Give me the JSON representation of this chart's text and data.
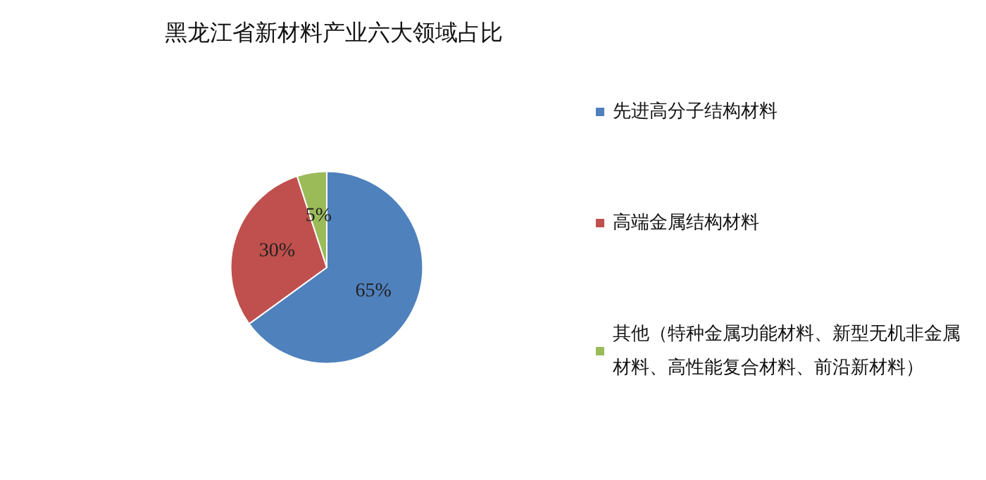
{
  "chart_data": {
    "type": "pie",
    "title": "黑龙江省新材料产业六大领域占比",
    "categories": [
      "先进高分子结构材料",
      "高端金属结构材料",
      "其他（特种金属功能材料、新型无机非金属材料、高性能复合材料、前沿新材料）"
    ],
    "values": [
      65,
      30,
      5
    ],
    "colors": [
      "#4f81bd",
      "#c0504d",
      "#9bbb59"
    ],
    "value_labels": [
      "65%",
      "30%",
      "5%"
    ],
    "legend": "right"
  }
}
